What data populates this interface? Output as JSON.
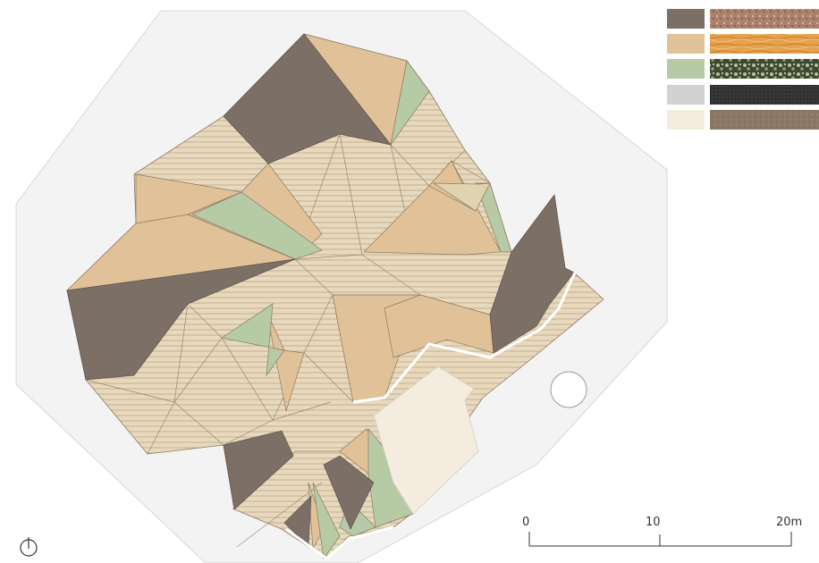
{
  "colors": {
    "background": "#ffffff",
    "site": "#f3f3f3",
    "site_edge": "#d7d7d7",
    "stone": "#7b6f66",
    "wood": "#e1c298",
    "planting": "#b7caa6",
    "gravel": "#d2d2d2",
    "sand": "#f5ece0",
    "deck_base": "#e8d9bd",
    "deck_line": "#b9a588",
    "facet_line": "#8b7a62"
  },
  "legend": [
    {
      "material": "stone",
      "swatch": "#7b6f66",
      "texture": "stone-texture"
    },
    {
      "material": "wood",
      "swatch": "#e1c298",
      "texture": "wood-texture"
    },
    {
      "material": "planting",
      "swatch": "#b7caa6",
      "texture": "planting-texture"
    },
    {
      "material": "gravel",
      "swatch": "#d2d2d2",
      "texture": "gravel-texture"
    },
    {
      "material": "sand",
      "swatch": "#f5ece0",
      "texture": "sand-texture"
    }
  ],
  "scale_bar": {
    "labels": [
      "0",
      "10",
      "20m"
    ]
  },
  "north_arrow": {
    "icon": "north-arrow-icon"
  }
}
